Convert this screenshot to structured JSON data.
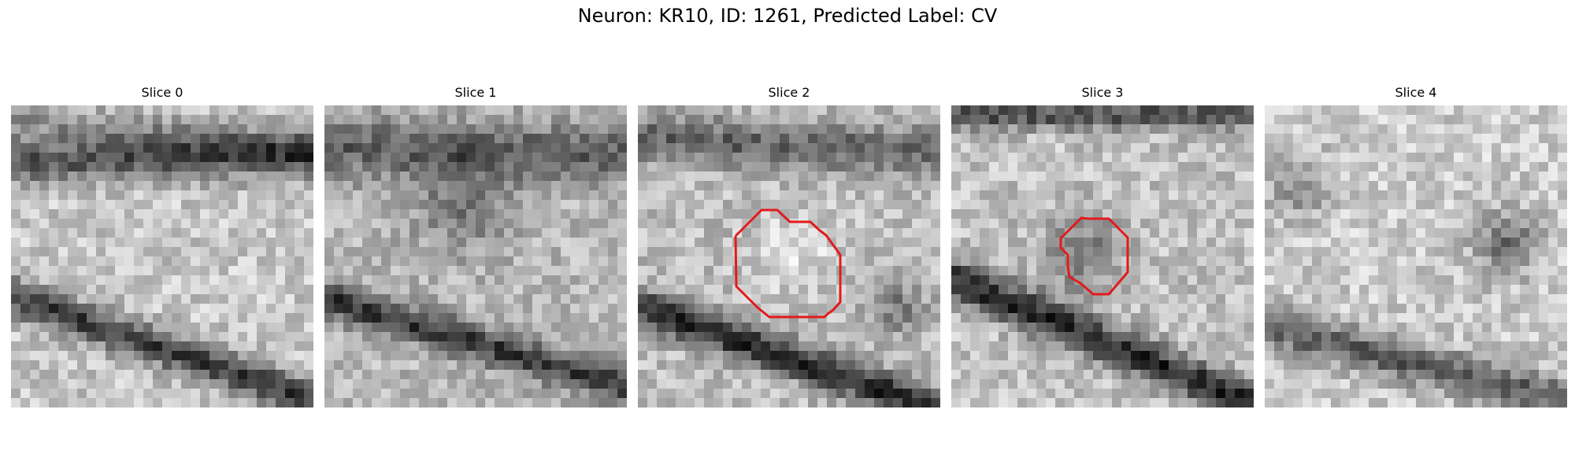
{
  "figure": {
    "title": "Neuron: KR10, ID: 1261, Predicted Label: CV"
  },
  "slices": [
    {
      "label": "Slice 0",
      "has_outline": false
    },
    {
      "label": "Slice 1",
      "has_outline": false
    },
    {
      "label": "Slice 2",
      "has_outline": true
    },
    {
      "label": "Slice 3",
      "has_outline": true
    },
    {
      "label": "Slice 4",
      "has_outline": false
    }
  ],
  "colors": {
    "outline": "#e31a1c",
    "background": "#ffffff"
  }
}
